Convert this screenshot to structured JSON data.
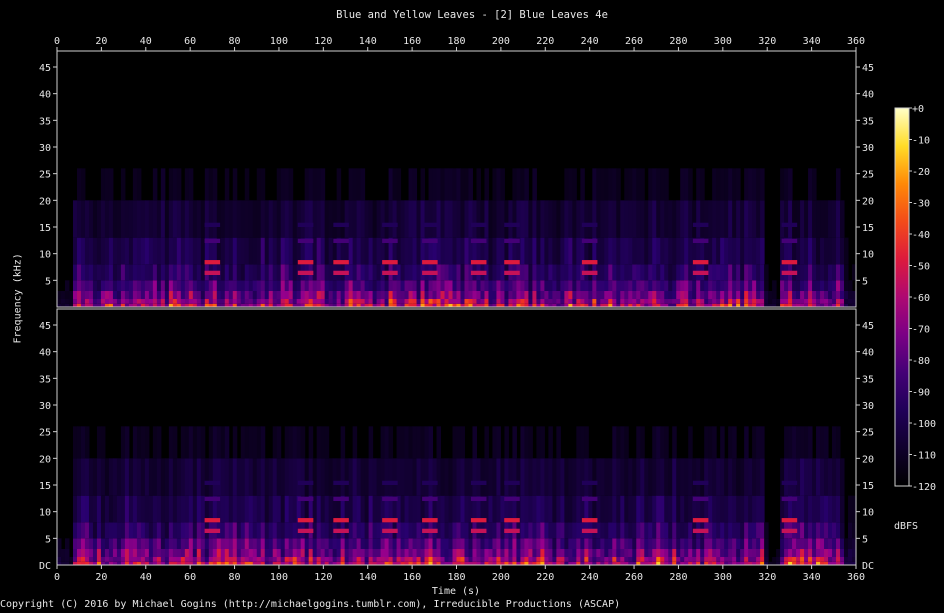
{
  "chart_data": {
    "type": "heatmap",
    "title": "Blue and Yellow Leaves - [2] Blue Leaves 4e",
    "xlabel": "Time (s)",
    "ylabel": "Frequency (kHz)",
    "xlim": [
      0,
      360
    ],
    "ylim": [
      0,
      48
    ],
    "x_ticks": [
      "0",
      "20",
      "40",
      "60",
      "80",
      "100",
      "120",
      "140",
      "160",
      "180",
      "200",
      "220",
      "240",
      "260",
      "280",
      "300",
      "320",
      "340",
      "360"
    ],
    "y_ticks": [
      "5",
      "10",
      "15",
      "20",
      "25",
      "30",
      "35",
      "40",
      "45"
    ],
    "bottom_tick_label": "DC",
    "channels": [
      "top",
      "bottom"
    ],
    "colorbar": {
      "label": "dBFS",
      "ticks": [
        "+0",
        "-10",
        "-20",
        "-30",
        "-40",
        "-50",
        "-60",
        "-70",
        "-80",
        "-90",
        "-100",
        "-110",
        "-120"
      ],
      "range": [
        -120,
        0
      ]
    },
    "bursts": [
      {
        "t": 70,
        "f": 8
      },
      {
        "t": 112,
        "f": 8
      },
      {
        "t": 128,
        "f": 8
      },
      {
        "t": 150,
        "f": 8
      },
      {
        "t": 168,
        "f": 8
      },
      {
        "t": 190,
        "f": 8
      },
      {
        "t": 205,
        "f": 8
      },
      {
        "t": 240,
        "f": 8
      },
      {
        "t": 290,
        "f": 8
      },
      {
        "t": 330,
        "f": 8
      }
    ],
    "colors": {
      "low": "#000000",
      "mid": "#c0003a",
      "high": "#ffff80"
    }
  },
  "footer": {
    "copyright": "Copyright (C) 2016 by Michael Gogins (http://michaelgogins.tumblr.com), Irreducible Productions (ASCAP)"
  }
}
